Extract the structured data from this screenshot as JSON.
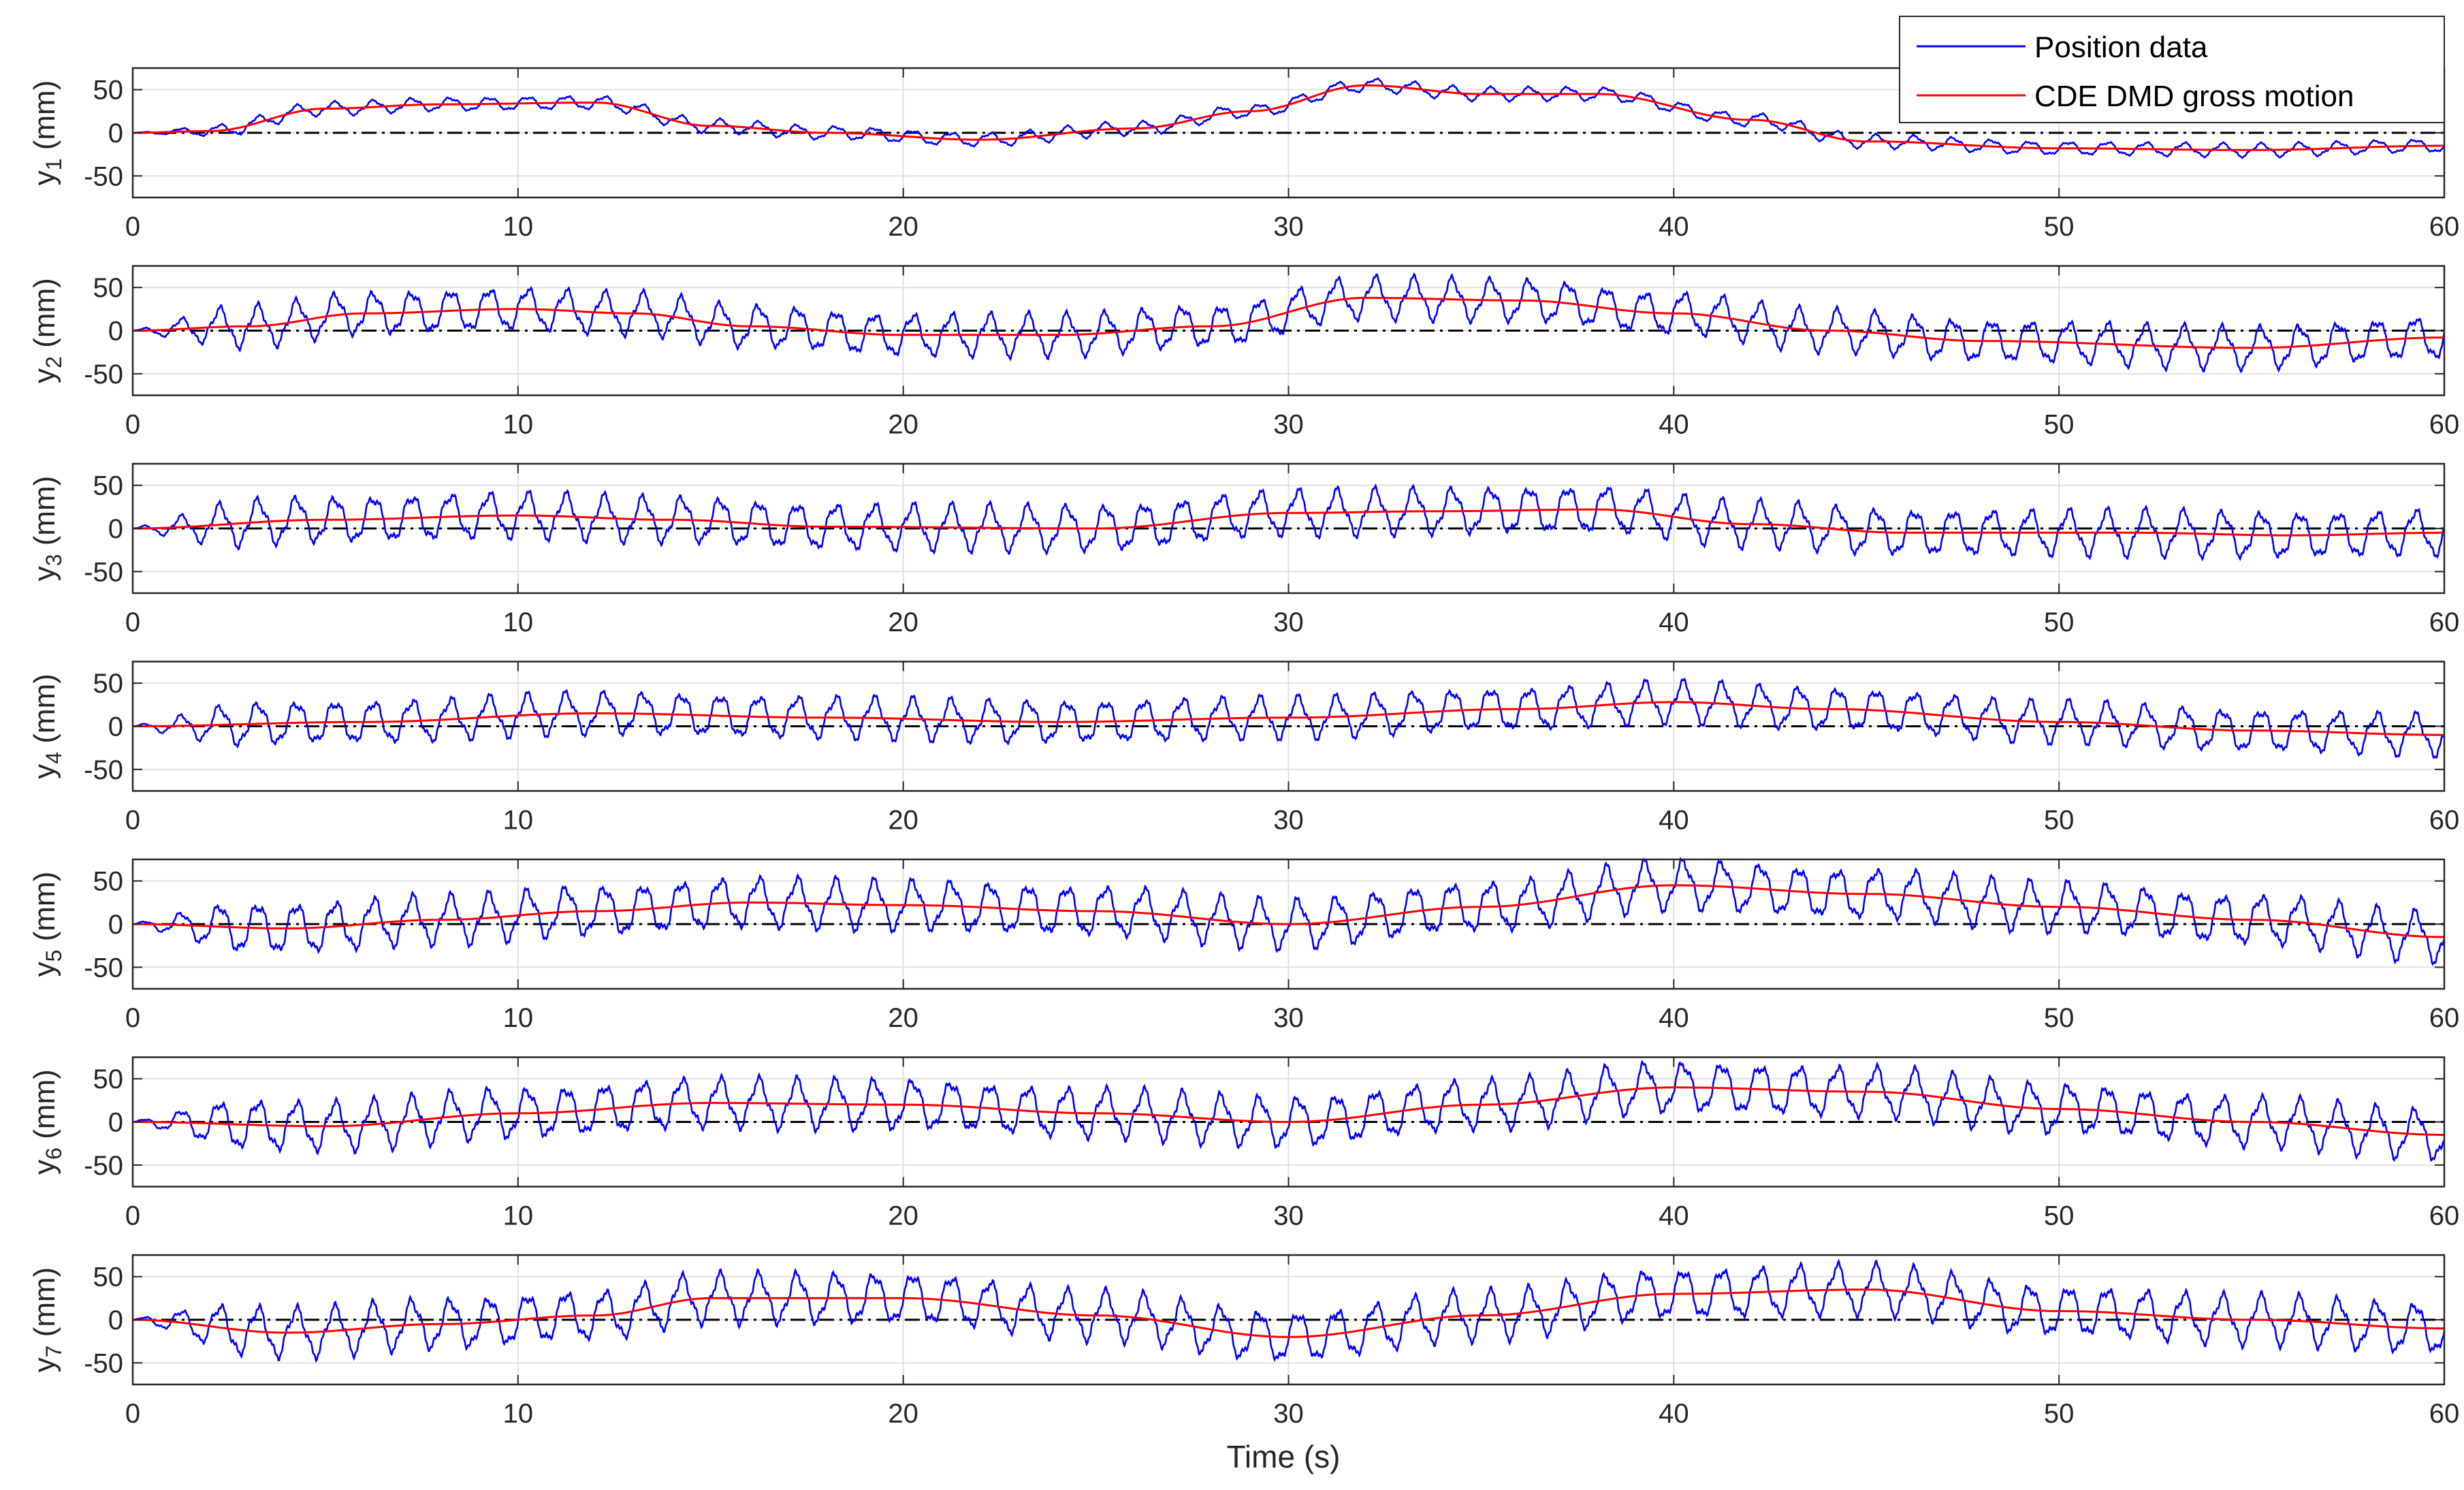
{
  "chart_data": {
    "type": "line",
    "xlabel": "Time (s)",
    "xlim": [
      0,
      60
    ],
    "xticks": [
      0,
      10,
      20,
      30,
      40,
      50,
      60
    ],
    "ylim": [
      -75,
      75
    ],
    "yticks": [
      -50,
      0,
      50
    ],
    "grid": true,
    "legend": {
      "position": "top-right",
      "entries": [
        "Position data",
        "CDE DMD gross motion"
      ]
    },
    "colors": {
      "position": "#0000ff",
      "gross": "#ff0000",
      "zero": "#000000",
      "grid": "#e0e0e0",
      "axis": "#262626"
    },
    "oscillation_period_s": 1.0,
    "panels": [
      {
        "ylabel": "y",
        "subscript": "1",
        "unit": " (mm)",
        "amplitude": 7,
        "gross_motion": [
          {
            "t": 0,
            "y": 0
          },
          {
            "t": 2,
            "y": 2
          },
          {
            "t": 5,
            "y": 28
          },
          {
            "t": 8,
            "y": 33
          },
          {
            "t": 12,
            "y": 35
          },
          {
            "t": 15,
            "y": 8
          },
          {
            "t": 18,
            "y": 0
          },
          {
            "t": 22,
            "y": -8
          },
          {
            "t": 26,
            "y": 5
          },
          {
            "t": 29,
            "y": 25
          },
          {
            "t": 32,
            "y": 55
          },
          {
            "t": 35,
            "y": 45
          },
          {
            "t": 38,
            "y": 45
          },
          {
            "t": 42,
            "y": 15
          },
          {
            "t": 45,
            "y": -10
          },
          {
            "t": 50,
            "y": -18
          },
          {
            "t": 55,
            "y": -20
          },
          {
            "t": 60,
            "y": -15
          }
        ]
      },
      {
        "ylabel": "y",
        "subscript": "2",
        "unit": " (mm)",
        "amplitude": 22,
        "gross_motion": [
          {
            "t": 0,
            "y": 0
          },
          {
            "t": 3,
            "y": 5
          },
          {
            "t": 6,
            "y": 20
          },
          {
            "t": 10,
            "y": 25
          },
          {
            "t": 13,
            "y": 20
          },
          {
            "t": 16,
            "y": 5
          },
          {
            "t": 20,
            "y": -5
          },
          {
            "t": 24,
            "y": -5
          },
          {
            "t": 28,
            "y": 5
          },
          {
            "t": 32,
            "y": 38
          },
          {
            "t": 36,
            "y": 35
          },
          {
            "t": 40,
            "y": 20
          },
          {
            "t": 44,
            "y": 0
          },
          {
            "t": 48,
            "y": -12
          },
          {
            "t": 55,
            "y": -20
          },
          {
            "t": 60,
            "y": -8
          }
        ]
      },
      {
        "ylabel": "y",
        "subscript": "3",
        "unit": " (mm)",
        "amplitude": 24,
        "gross_motion": [
          {
            "t": 0,
            "y": 0
          },
          {
            "t": 5,
            "y": 10
          },
          {
            "t": 10,
            "y": 15
          },
          {
            "t": 14,
            "y": 10
          },
          {
            "t": 18,
            "y": 2
          },
          {
            "t": 25,
            "y": 0
          },
          {
            "t": 30,
            "y": 18
          },
          {
            "t": 34,
            "y": 20
          },
          {
            "t": 38,
            "y": 22
          },
          {
            "t": 42,
            "y": 5
          },
          {
            "t": 46,
            "y": -5
          },
          {
            "t": 52,
            "y": -5
          },
          {
            "t": 56,
            "y": -8
          },
          {
            "t": 60,
            "y": -5
          }
        ]
      },
      {
        "ylabel": "y",
        "subscript": "4",
        "unit": " (mm)",
        "amplitude": 22,
        "gross_motion": [
          {
            "t": 0,
            "y": 0
          },
          {
            "t": 6,
            "y": 5
          },
          {
            "t": 12,
            "y": 15
          },
          {
            "t": 18,
            "y": 10
          },
          {
            "t": 24,
            "y": 5
          },
          {
            "t": 30,
            "y": 10
          },
          {
            "t": 36,
            "y": 20
          },
          {
            "t": 40,
            "y": 28
          },
          {
            "t": 44,
            "y": 20
          },
          {
            "t": 50,
            "y": 5
          },
          {
            "t": 55,
            "y": -5
          },
          {
            "t": 60,
            "y": -10
          }
        ]
      },
      {
        "ylabel": "y",
        "subscript": "5",
        "unit": " (mm)",
        "amplitude": 26,
        "gross_motion": [
          {
            "t": 0,
            "y": 0
          },
          {
            "t": 4,
            "y": -5
          },
          {
            "t": 8,
            "y": 5
          },
          {
            "t": 12,
            "y": 15
          },
          {
            "t": 16,
            "y": 25
          },
          {
            "t": 20,
            "y": 22
          },
          {
            "t": 25,
            "y": 15
          },
          {
            "t": 30,
            "y": 0
          },
          {
            "t": 35,
            "y": 20
          },
          {
            "t": 40,
            "y": 45
          },
          {
            "t": 45,
            "y": 35
          },
          {
            "t": 50,
            "y": 20
          },
          {
            "t": 55,
            "y": 5
          },
          {
            "t": 60,
            "y": -15
          }
        ]
      },
      {
        "ylabel": "y",
        "subscript": "6",
        "unit": " (mm)",
        "amplitude": 26,
        "gross_motion": [
          {
            "t": 0,
            "y": 0
          },
          {
            "t": 5,
            "y": -5
          },
          {
            "t": 10,
            "y": 10
          },
          {
            "t": 15,
            "y": 22
          },
          {
            "t": 20,
            "y": 20
          },
          {
            "t": 25,
            "y": 10
          },
          {
            "t": 30,
            "y": 0
          },
          {
            "t": 35,
            "y": 20
          },
          {
            "t": 40,
            "y": 40
          },
          {
            "t": 45,
            "y": 35
          },
          {
            "t": 50,
            "y": 15
          },
          {
            "t": 55,
            "y": 0
          },
          {
            "t": 60,
            "y": -15
          }
        ]
      },
      {
        "ylabel": "y",
        "subscript": "7",
        "unit": " (mm)",
        "amplitude": 26,
        "gross_motion": [
          {
            "t": 0,
            "y": 0
          },
          {
            "t": 4,
            "y": -15
          },
          {
            "t": 8,
            "y": -5
          },
          {
            "t": 12,
            "y": 5
          },
          {
            "t": 15,
            "y": 25
          },
          {
            "t": 20,
            "y": 25
          },
          {
            "t": 25,
            "y": 5
          },
          {
            "t": 30,
            "y": -20
          },
          {
            "t": 35,
            "y": 5
          },
          {
            "t": 40,
            "y": 30
          },
          {
            "t": 45,
            "y": 35
          },
          {
            "t": 50,
            "y": 10
          },
          {
            "t": 55,
            "y": 0
          },
          {
            "t": 60,
            "y": -10
          }
        ]
      }
    ]
  }
}
